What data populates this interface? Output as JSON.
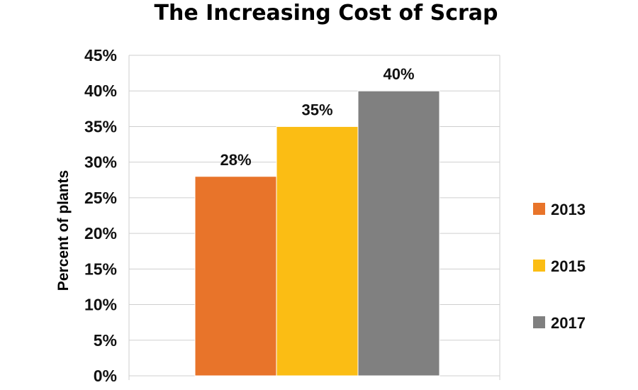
{
  "chart_data": {
    "type": "bar",
    "title": "The Increasing Cost of Scrap",
    "ylabel": "Percent of plants",
    "xlabel": "",
    "ylim": [
      0,
      45
    ],
    "ytick_step": 5,
    "ytick_labels": [
      "0%",
      "5%",
      "10%",
      "15%",
      "20%",
      "25%",
      "30%",
      "35%",
      "40%",
      "45%"
    ],
    "grid": true,
    "legend_position": "right",
    "series": [
      {
        "name": "2013",
        "value": 28,
        "label": "28%",
        "color": "#e8742a"
      },
      {
        "name": "2015",
        "value": 35,
        "label": "35%",
        "color": "#fbbd14"
      },
      {
        "name": "2017",
        "value": 40,
        "label": "40%",
        "color": "#808080"
      }
    ]
  }
}
